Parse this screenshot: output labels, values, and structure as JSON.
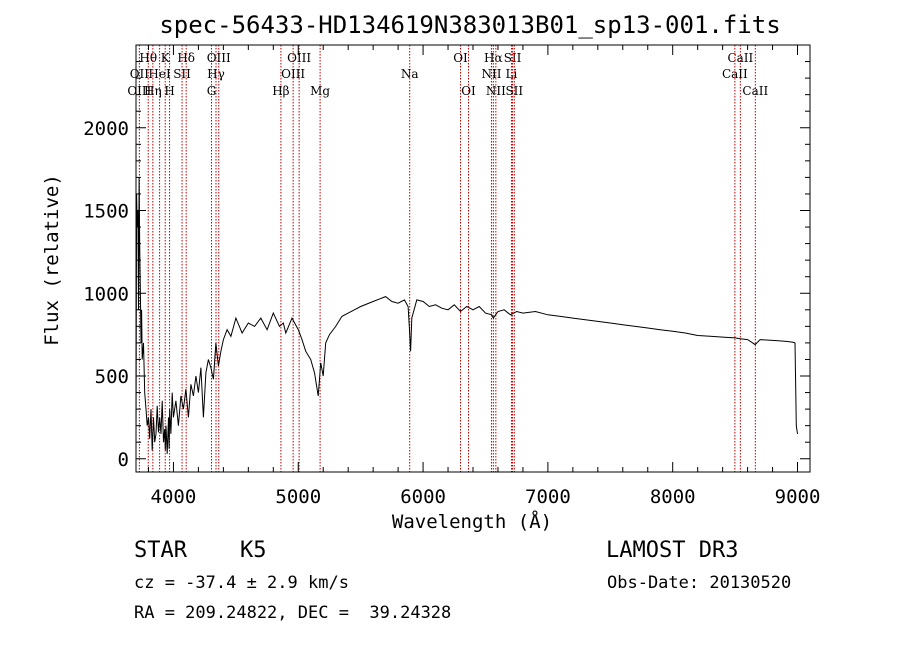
{
  "chart_data": {
    "type": "line",
    "title": "spec-56433-HD134619N383013B01_sp13-001.fits",
    "xlabel": "Wavelength (Å)",
    "ylabel": "Flux (relative)",
    "xlim": [
      3700,
      9100
    ],
    "ylim": [
      -80,
      2500
    ],
    "x_ticks": [
      4000,
      5000,
      6000,
      7000,
      8000,
      9000
    ],
    "y_ticks": [
      0,
      500,
      1000,
      1500,
      2000
    ],
    "series": [
      {
        "name": "flux",
        "x": [
          3700,
          3705,
          3710,
          3715,
          3720,
          3725,
          3730,
          3735,
          3740,
          3745,
          3750,
          3760,
          3770,
          3780,
          3790,
          3800,
          3810,
          3820,
          3830,
          3840,
          3850,
          3860,
          3870,
          3880,
          3890,
          3900,
          3910,
          3920,
          3930,
          3935,
          3940,
          3950,
          3960,
          3965,
          3970,
          3980,
          3990,
          4000,
          4020,
          4040,
          4060,
          4080,
          4100,
          4120,
          4140,
          4160,
          4180,
          4200,
          4220,
          4240,
          4260,
          4280,
          4300,
          4320,
          4340,
          4360,
          4380,
          4400,
          4430,
          4460,
          4500,
          4550,
          4600,
          4650,
          4700,
          4750,
          4800,
          4850,
          4880,
          4900,
          4950,
          5000,
          5030,
          5060,
          5100,
          5130,
          5160,
          5170,
          5180,
          5200,
          5220,
          5250,
          5300,
          5350,
          5400,
          5450,
          5500,
          5600,
          5700,
          5750,
          5800,
          5850,
          5880,
          5890,
          5900,
          5910,
          5950,
          6000,
          6050,
          6100,
          6150,
          6200,
          6250,
          6300,
          6350,
          6400,
          6450,
          6500,
          6550,
          6563,
          6600,
          6650,
          6700,
          6750,
          6800,
          6900,
          7000,
          7100,
          7200,
          7300,
          7400,
          7500,
          7600,
          7700,
          7800,
          7900,
          8000,
          8100,
          8200,
          8300,
          8400,
          8500,
          8540,
          8600,
          8660,
          8700,
          8800,
          8900,
          8960,
          8980,
          8990,
          9000
        ],
        "values": [
          100,
          1600,
          1400,
          1500,
          900,
          1700,
          1300,
          1000,
          700,
          900,
          600,
          700,
          400,
          300,
          200,
          250,
          120,
          300,
          50,
          250,
          100,
          150,
          320,
          160,
          250,
          150,
          350,
          100,
          180,
          50,
          200,
          30,
          250,
          60,
          300,
          150,
          400,
          250,
          350,
          200,
          380,
          300,
          420,
          250,
          450,
          380,
          500,
          400,
          550,
          250,
          520,
          600,
          550,
          480,
          700,
          560,
          650,
          720,
          780,
          740,
          850,
          760,
          820,
          800,
          850,
          780,
          880,
          800,
          820,
          760,
          850,
          780,
          720,
          650,
          600,
          520,
          380,
          480,
          580,
          500,
          700,
          750,
          800,
          860,
          880,
          900,
          920,
          950,
          980,
          950,
          940,
          960,
          920,
          800,
          650,
          850,
          960,
          950,
          920,
          930,
          910,
          900,
          930,
          890,
          920,
          900,
          920,
          880,
          870,
          850,
          890,
          900,
          870,
          890,
          880,
          890,
          870,
          860,
          850,
          840,
          830,
          820,
          810,
          800,
          790,
          780,
          770,
          760,
          745,
          740,
          735,
          730,
          725,
          720,
          690,
          720,
          715,
          710,
          705,
          700,
          200,
          150
        ]
      }
    ],
    "line_markers": [
      {
        "label": "Hθ",
        "x": 3798,
        "row": 0
      },
      {
        "label": "OII",
        "x": 3727,
        "row": 1
      },
      {
        "label": "OIII",
        "x": 3727,
        "row": 2
      },
      {
        "label": "K",
        "x": 3934,
        "row": 0
      },
      {
        "label": "HeI",
        "x": 3889,
        "row": 1
      },
      {
        "label": "Hη",
        "x": 3835,
        "row": 2
      },
      {
        "label": "Hδ",
        "x": 4102,
        "row": 0
      },
      {
        "label": "SII",
        "x": 4069,
        "row": 1
      },
      {
        "label": "H",
        "x": 3969,
        "row": 2
      },
      {
        "label": "OIII",
        "x": 4363,
        "row": 0
      },
      {
        "label": "Hγ",
        "x": 4341,
        "row": 1
      },
      {
        "label": "G",
        "x": 4305,
        "row": 2
      },
      {
        "label": "OIII",
        "x": 5007,
        "row": 0
      },
      {
        "label": "OIII",
        "x": 4959,
        "row": 1
      },
      {
        "label": "Hβ",
        "x": 4861,
        "row": 2
      },
      {
        "label": "Mg",
        "x": 5175,
        "row": 2
      },
      {
        "label": "Na",
        "x": 5893,
        "row": 1
      },
      {
        "label": "OI",
        "x": 6300,
        "row": 0
      },
      {
        "label": "OI",
        "x": 6364,
        "row": 2
      },
      {
        "label": "Hα",
        "x": 6563,
        "row": 0
      },
      {
        "label": "SII",
        "x": 6717,
        "row": 0
      },
      {
        "label": "NII",
        "x": 6548,
        "row": 1
      },
      {
        "label": "Li",
        "x": 6708,
        "row": 1
      },
      {
        "label": "NII",
        "x": 6583,
        "row": 2
      },
      {
        "label": "SII",
        "x": 6731,
        "row": 2
      },
      {
        "label": "CaII",
        "x": 8542,
        "row": 0
      },
      {
        "label": "CaII",
        "x": 8498,
        "row": 1
      },
      {
        "label": "CaII",
        "x": 8662,
        "row": 2
      }
    ]
  },
  "info": {
    "class": "STAR",
    "subclass": "K5",
    "survey": "LAMOST DR3",
    "cz": "cz = -37.4 ± 2.9 km/s",
    "obs_date": "Obs-Date: 20130520",
    "coords": "RA = 209.24822, DEC =  39.24328"
  }
}
